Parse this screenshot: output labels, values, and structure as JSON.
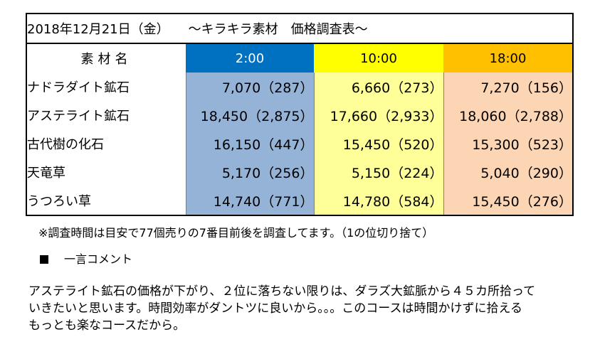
{
  "title": "2018年12月21日（金）　　～キラキラ素材　価格調査表～",
  "header": {
    "name_col": "素材名",
    "times": [
      "2:00",
      "10:00",
      "18:00"
    ]
  },
  "rows": [
    {
      "name": "ナドラダイト鉱石",
      "values": [
        "7,070（287）",
        "6,660（273）",
        "7,270（156）"
      ]
    },
    {
      "name": "アステライト鉱石",
      "values": [
        "18,450（2,875）",
        "17,660（2,933）",
        "18,060（2,788）"
      ]
    },
    {
      "name": "古代樹の化石",
      "values": [
        "16,150（447）",
        "15,450（520）",
        "15,300（523）"
      ]
    },
    {
      "name": "天竜草",
      "values": [
        "5,170（256）",
        "5,150（224）",
        "5,040（290）"
      ]
    },
    {
      "name": "うつろい草",
      "values": [
        "14,740（771）",
        "14,780（584）",
        "15,450（276）"
      ]
    }
  ],
  "note": "※調査時間は目安で77個売りの7番目前後を調査してます。（1の位切り捨て）",
  "comment_heading": "一言コメント",
  "comment_lines": [
    "アステライト鉱石の価格が下がり、２位に落ちない限りは、ダラズ大鉱脈から４５カ所拾って",
    "いきたいと思います。時間効率がダントツに良いから。。。このコースは時間かけずに拾える",
    "もっとも楽なコースだから。"
  ],
  "colors": {
    "col_2_header": "#0070c0",
    "col_10_header": "#ffff00",
    "col_18_header": "#ffc000",
    "col_2_cells": "#95b3d7",
    "col_10_cells": "#ffff99",
    "col_18_cells": "#fcd5b4"
  }
}
